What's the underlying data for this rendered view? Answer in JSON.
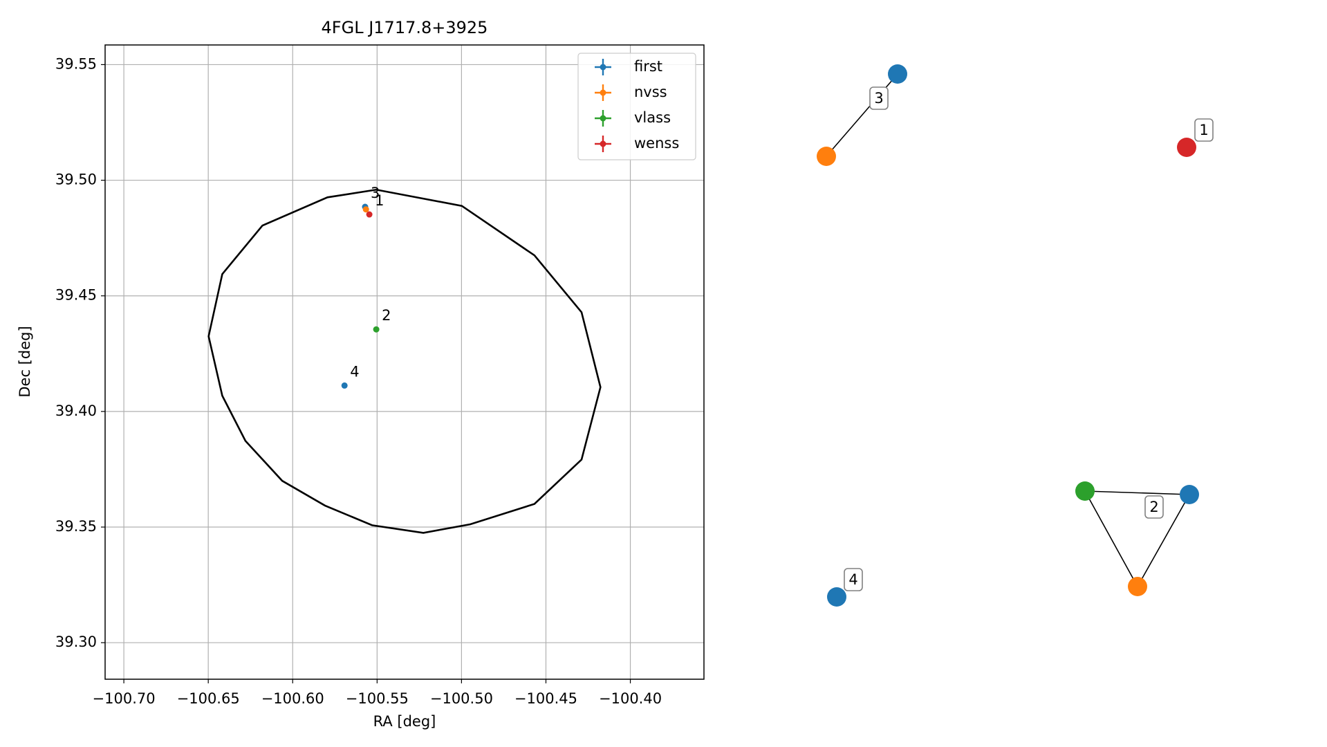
{
  "chart_data": [
    {
      "type": "scatter",
      "title": "4FGL J1717.8+3925",
      "x_label": "RA [deg]",
      "y_label": "Dec [deg]",
      "xlim": [
        -100.7111,
        -100.3564
      ],
      "ylim": [
        39.2842,
        39.5585
      ],
      "grid": true,
      "legend": "upper right",
      "xticks": [
        {
          "value": -100.7,
          "label": "−100.70"
        },
        {
          "value": -100.65,
          "label": "−100.65"
        },
        {
          "value": -100.6,
          "label": "−100.60"
        },
        {
          "value": -100.55,
          "label": "−100.55"
        },
        {
          "value": -100.5,
          "label": "−100.50"
        },
        {
          "value": -100.45,
          "label": "−100.45"
        },
        {
          "value": -100.4,
          "label": "−100.40"
        }
      ],
      "yticks": [
        {
          "value": 39.3,
          "label": "39.30"
        },
        {
          "value": 39.35,
          "label": "39.35"
        },
        {
          "value": 39.4,
          "label": "39.40"
        },
        {
          "value": 39.45,
          "label": "39.45"
        },
        {
          "value": 39.5,
          "label": "39.50"
        },
        {
          "value": 39.55,
          "label": "39.55"
        }
      ],
      "series": [
        {
          "name": "first",
          "color": "#1f77b4",
          "x": [
            -100.5571,
            -100.5693
          ],
          "values": [
            39.4885,
            39.4112
          ],
          "point_labels": [
            "3",
            "4"
          ]
        },
        {
          "name": "nvss",
          "color": "#ff7f0e",
          "x": [
            -100.5566
          ],
          "values": [
            39.4874
          ],
          "point_labels": [
            null
          ]
        },
        {
          "name": "vlass",
          "color": "#2ca02c",
          "x": [
            -100.5505
          ],
          "values": [
            39.4355
          ],
          "point_labels": [
            "2"
          ]
        },
        {
          "name": "wenss",
          "color": "#d62728",
          "x": [
            -100.5546
          ],
          "values": [
            39.4852
          ],
          "point_labels": [
            "1"
          ]
        }
      ],
      "ellipse": {
        "color": "#000000",
        "x": [
          -100.6498,
          -100.6417,
          -100.6179,
          -100.5794,
          -100.5505,
          -100.4998,
          -100.4568,
          -100.4289,
          -100.4177,
          -100.4289,
          -100.4568,
          -100.4948,
          -100.5226,
          -100.553,
          -100.5809,
          -100.6062,
          -100.628,
          -100.6417
        ],
        "values": [
          39.4325,
          39.4594,
          39.4804,
          39.4926,
          39.4959,
          39.4889,
          39.4675,
          39.4429,
          39.4105,
          39.3792,
          39.36,
          39.3512,
          39.3475,
          39.3508,
          39.3593,
          39.37,
          39.3873,
          39.4068
        ]
      }
    },
    {
      "type": "network",
      "groups": [
        {
          "label": "3",
          "colors": [
            "#1f77b4",
            "#ff7f0e"
          ]
        },
        {
          "label": "1",
          "colors": [
            "#d62728"
          ]
        },
        {
          "label": "2",
          "colors": [
            "#2ca02c",
            "#1f77b4",
            "#ff7f0e"
          ]
        },
        {
          "label": "4",
          "colors": [
            "#1f77b4"
          ]
        }
      ]
    }
  ]
}
